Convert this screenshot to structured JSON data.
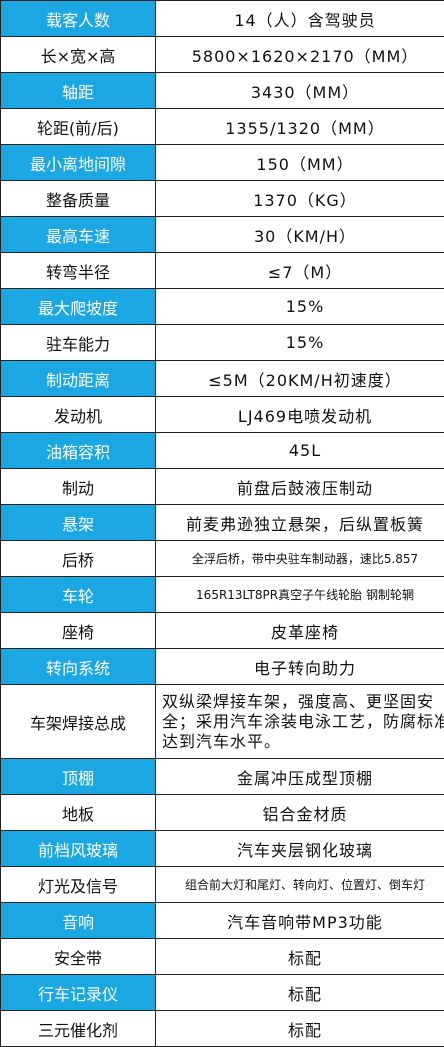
{
  "rows": [
    {
      "label": "载客人数",
      "value": "14（人）含驾驶员",
      "hl": true
    },
    {
      "label": "长×宽×高",
      "value": "5800×1620×2170（MM）",
      "hl": false
    },
    {
      "label": "轴距",
      "value": "3430（MM）",
      "hl": true
    },
    {
      "label": "轮距(前/后)",
      "value": "1355/1320（MM）",
      "hl": false
    },
    {
      "label": "最小离地间隙",
      "value": "150（MM）",
      "hl": true
    },
    {
      "label": "整备质量",
      "value": "1370（KG）",
      "hl": false
    },
    {
      "label": "最高车速",
      "value": "30（KM/H）",
      "hl": true
    },
    {
      "label": "转弯半径",
      "value": "≤7（M）",
      "hl": false
    },
    {
      "label": "最大爬坡度",
      "value": "15%",
      "hl": true
    },
    {
      "label": "驻车能力",
      "value": "15%",
      "hl": false
    },
    {
      "label": "制动距离",
      "value": "≤5M（20KM/H初速度）",
      "hl": true
    },
    {
      "label": "发动机",
      "value": "LJ469电喷发动机",
      "hl": false
    },
    {
      "label": "油箱容积",
      "value": "45L",
      "hl": true
    },
    {
      "label": "制动",
      "value": "前盘后鼓液压制动",
      "hl": false
    },
    {
      "label": "悬架",
      "value": "前麦弗逊独立悬架，后纵置板簧",
      "hl": true
    },
    {
      "label": "后桥",
      "value": "全浮后桥，带中央驻车制动器，速比5.857",
      "hl": false
    },
    {
      "label": "车轮",
      "value": "165R13LT8PR真空子午线轮胎   钢制轮辋",
      "hl": true
    },
    {
      "label": "座椅",
      "value": "皮革座椅",
      "hl": false
    },
    {
      "label": "转向系统",
      "value": "电子转向助力",
      "hl": true
    },
    {
      "label": "车架焊接总成",
      "value": "双纵梁焊接车架，强度高、更坚固安全；采用汽车涂装电泳工艺，防腐标准达到汽车水平。",
      "hl": false
    },
    {
      "label": "顶棚",
      "value": "金属冲压成型顶棚",
      "hl": true
    },
    {
      "label": "地板",
      "value": "铝合金材质",
      "hl": false
    },
    {
      "label": "前档风玻璃",
      "value": "汽车夹层钢化玻璃",
      "hl": true
    },
    {
      "label": "灯光及信号",
      "value": "组合前大灯和尾灯、转向灯、位置灯、倒车灯",
      "hl": false
    },
    {
      "label": "音响",
      "value": "汽车音响带MP3功能",
      "hl": true
    },
    {
      "label": "安全带",
      "value": "标配",
      "hl": false
    },
    {
      "label": "行车记录仪",
      "value": "标配",
      "hl": true
    },
    {
      "label": "三元催化剂",
      "value": "标配",
      "hl": false
    }
  ],
  "colors": {
    "highlight": "#1aa7e2",
    "text": "#111111"
  }
}
